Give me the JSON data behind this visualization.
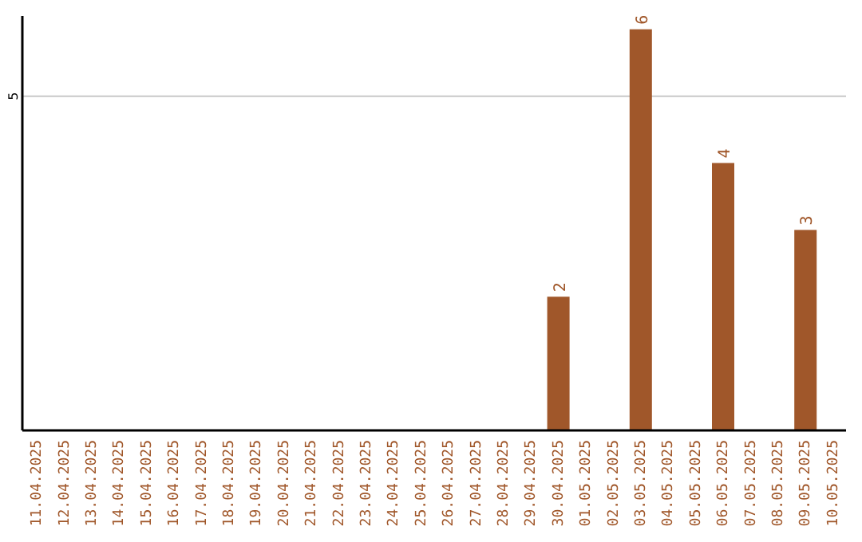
{
  "chart_data": {
    "type": "bar",
    "categories": [
      "11.04.2025",
      "12.04.2025",
      "13.04.2025",
      "14.04.2025",
      "15.04.2025",
      "16.04.2025",
      "17.04.2025",
      "18.04.2025",
      "19.04.2025",
      "20.04.2025",
      "21.04.2025",
      "22.04.2025",
      "23.04.2025",
      "24.04.2025",
      "25.04.2025",
      "26.04.2025",
      "27.04.2025",
      "28.04.2025",
      "29.04.2025",
      "30.04.2025",
      "01.05.2025",
      "02.05.2025",
      "03.05.2025",
      "04.05.2025",
      "05.05.2025",
      "06.05.2025",
      "07.05.2025",
      "08.05.2025",
      "09.05.2025",
      "10.05.2025"
    ],
    "values": [
      null,
      null,
      null,
      null,
      null,
      null,
      null,
      null,
      null,
      null,
      null,
      null,
      null,
      null,
      null,
      null,
      null,
      null,
      null,
      2,
      null,
      null,
      6,
      null,
      null,
      4,
      null,
      null,
      3,
      null
    ],
    "color": "#a0572a",
    "ylim": [
      0,
      6.2
    ],
    "yticks": [
      5
    ],
    "grid": "y",
    "data_labels": true
  }
}
